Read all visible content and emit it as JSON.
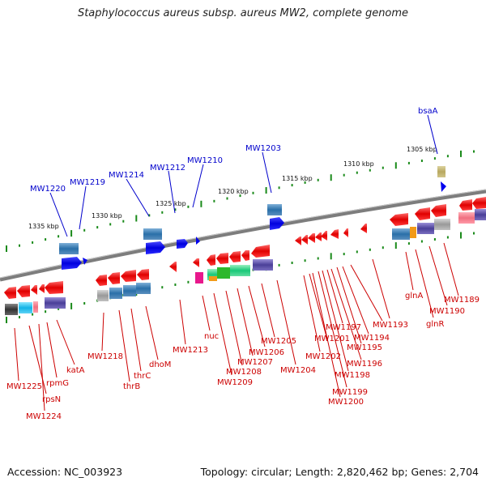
{
  "title": "Staphylococcus aureus subsp. aureus MW2, complete genome",
  "footer": {
    "accession": "Accession: NC_003923",
    "topology": "Topology: circular; Length: 2,820,462 bp; Genes: 2,704"
  },
  "colors": {
    "forward_label": "#0000cc",
    "reverse_label": "#cc0000",
    "backbone": "#808080",
    "tick": "#1a8a1a"
  },
  "scale_labels": [
    "1335 kbp",
    "1330 kbp",
    "1325 kbp",
    "1320 kbp",
    "1315 kbp",
    "1310 kbp",
    "1305 kbp"
  ],
  "forward_genes": [
    "MW1220",
    "MW1219",
    "MW1214",
    "MW1212",
    "MW1210",
    "MW1203",
    "bsaA"
  ],
  "reverse_genes": [
    "MW1225",
    "rpsN",
    "MW1224",
    "rpmG",
    "katA",
    "MW1218",
    "thrB",
    "thrC",
    "dhoM",
    "MW1213",
    "nuc",
    "MW1209",
    "MW1208",
    "MW1207",
    "MW1206",
    "MW1205",
    "MW1204",
    "MW1202",
    "MW1201",
    "MW1200",
    "MW1199",
    "MW1198",
    "MW1197",
    "MW1196",
    "MW1195",
    "MW1194",
    "MW1193",
    "glnA",
    "glnR",
    "MW1190",
    "MW1189"
  ]
}
